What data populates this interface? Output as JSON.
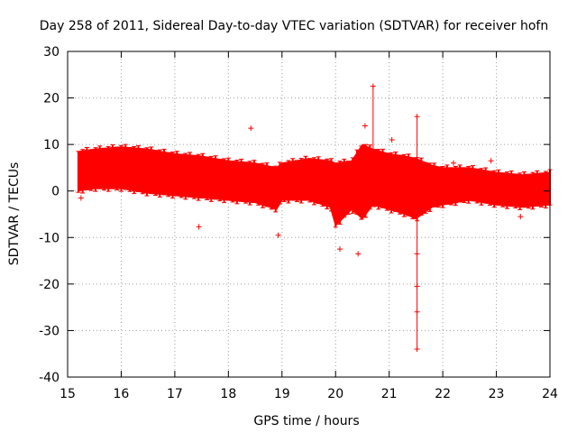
{
  "chart_data": {
    "type": "scatter",
    "title": "Day 258 of 2011, Sidereal Day-to-day VTEC variation (SDTVAR) for receiver hofn",
    "xlabel": "GPS time / hours",
    "ylabel": "SDTVAR / TECUs",
    "xlim": [
      15,
      24
    ],
    "ylim": [
      -40,
      30
    ],
    "xticks": [
      "15",
      "16",
      "17",
      "18",
      "19",
      "20",
      "21",
      "22",
      "23",
      "24"
    ],
    "yticks": [
      "30",
      "20",
      "10",
      "0",
      "-10",
      "-20",
      "-30",
      "-40"
    ],
    "grid": true,
    "series": [
      {
        "name": "SDTVAR",
        "color": "#ff0000",
        "band": {
          "x": [
            15.2,
            15.5,
            16.0,
            16.5,
            17.0,
            17.5,
            18.0,
            18.5,
            18.9,
            19.0,
            19.5,
            19.9,
            20.0,
            20.3,
            20.5,
            20.7,
            21.0,
            21.3,
            21.5,
            21.8,
            22.0,
            22.5,
            23.0,
            23.5,
            24.0
          ],
          "upper": [
            8.5,
            9.0,
            9.5,
            9.0,
            8.0,
            7.5,
            6.5,
            6.0,
            5.0,
            6.0,
            7.0,
            6.5,
            6.0,
            6.5,
            10.0,
            9.0,
            8.0,
            7.5,
            7.0,
            5.5,
            5.0,
            5.0,
            4.0,
            3.5,
            4.0
          ],
          "lower": [
            0.0,
            0.5,
            0.5,
            -0.5,
            -1.0,
            -1.5,
            -2.0,
            -2.5,
            -4.0,
            -2.0,
            -2.0,
            -3.5,
            -7.5,
            -4.0,
            -6.0,
            -3.0,
            -4.0,
            -5.0,
            -6.0,
            -3.5,
            -3.0,
            -2.0,
            -3.0,
            -3.5,
            -3.0
          ]
        },
        "outliers": [
          {
            "x": 15.25,
            "y": -1.5
          },
          {
            "x": 17.45,
            "y": -7.7
          },
          {
            "x": 18.42,
            "y": 13.5
          },
          {
            "x": 18.93,
            "y": -9.5
          },
          {
            "x": 20.08,
            "y": -12.5
          },
          {
            "x": 20.42,
            "y": -13.5
          },
          {
            "x": 20.55,
            "y": 14.0
          },
          {
            "x": 20.7,
            "y": 22.5
          },
          {
            "x": 21.05,
            "y": 11.0
          },
          {
            "x": 21.52,
            "y": 16.0
          },
          {
            "x": 21.52,
            "y": -34.0
          },
          {
            "x": 21.52,
            "y": -26.0
          },
          {
            "x": 21.52,
            "y": -20.5
          },
          {
            "x": 21.52,
            "y": -13.5
          },
          {
            "x": 22.2,
            "y": 6.0
          },
          {
            "x": 22.9,
            "y": 6.5
          },
          {
            "x": 23.45,
            "y": -5.5
          }
        ],
        "spikes": [
          {
            "x": 20.7,
            "low": 0.0,
            "high": 22.5
          },
          {
            "x": 21.52,
            "low": -34.0,
            "high": 16.0
          }
        ]
      }
    ]
  }
}
